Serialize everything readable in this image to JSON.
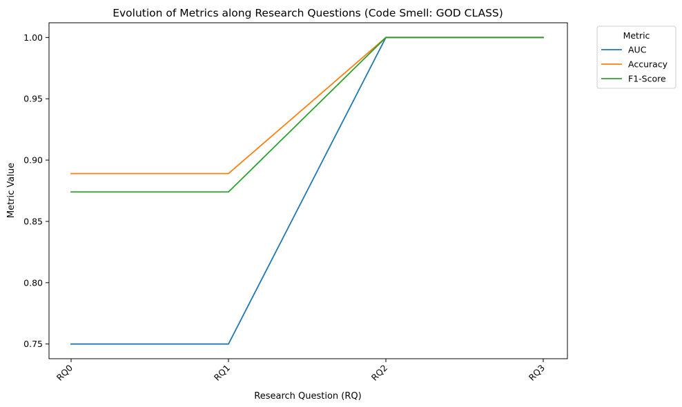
{
  "chart_data": {
    "type": "line",
    "title": "Evolution of Metrics along Research Questions (Code Smell: GOD CLASS)",
    "xlabel": "Research Question (RQ)",
    "ylabel": "Metric Value",
    "categories": [
      "RQ0",
      "RQ1",
      "RQ2",
      "RQ3"
    ],
    "ylim": [
      0.738,
      1.012
    ],
    "yticks": [
      0.75,
      0.8,
      0.85,
      0.9,
      0.95,
      1.0
    ],
    "ytick_labels": [
      "0.75",
      "0.80",
      "0.85",
      "0.90",
      "0.95",
      "1.00"
    ],
    "grid": false,
    "legend": {
      "title": "Metric",
      "placement": "outside-top-right"
    },
    "series": [
      {
        "name": "AUC",
        "color": "#1f77b4",
        "values": [
          0.75,
          0.75,
          1.0,
          1.0
        ]
      },
      {
        "name": "Accuracy",
        "color": "#ff7f0e",
        "values": [
          0.889,
          0.889,
          1.0,
          1.0
        ]
      },
      {
        "name": "F1-Score",
        "color": "#2ca02c",
        "values": [
          0.874,
          0.874,
          1.0,
          1.0
        ]
      }
    ]
  }
}
